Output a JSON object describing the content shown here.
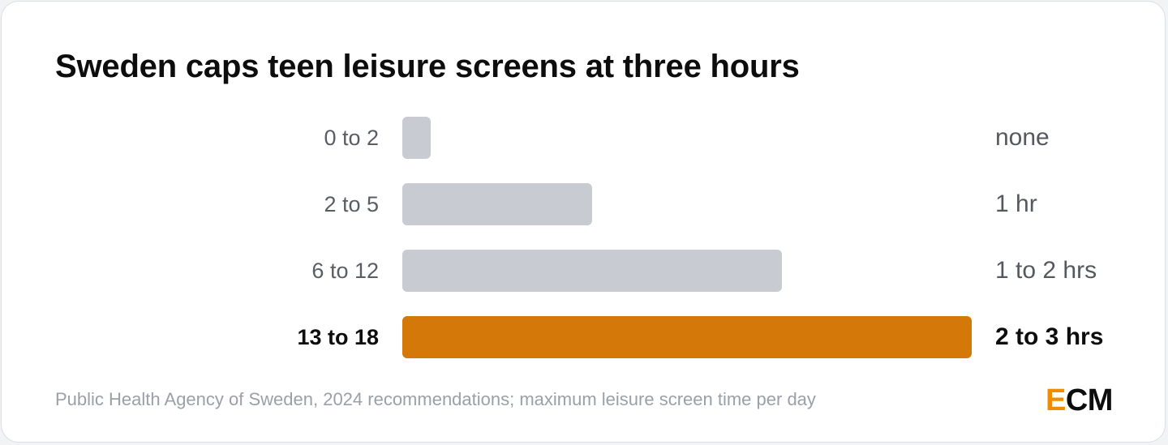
{
  "chart_data": {
    "type": "bar",
    "orientation": "horizontal",
    "title": "Sweden caps teen leisure screens at three hours",
    "categories": [
      "0 to 2",
      "2 to 5",
      "6 to 12",
      "13 to 18"
    ],
    "values": [
      0,
      1,
      2,
      3
    ],
    "value_labels": [
      "none",
      "1 hr",
      "1 to 2 hrs",
      "2 to 3 hrs"
    ],
    "highlight_index": 3,
    "xlim": [
      0,
      3
    ],
    "grid": false,
    "colors": {
      "default": "#c8cbd2",
      "highlight": "#d4780a"
    }
  },
  "source": "Public Health Agency of Sweden, 2024 recommendations; maximum leisure screen time per day",
  "logo": {
    "accent": "E",
    "rest": "CM",
    "accent_color": "#ef8c00"
  }
}
